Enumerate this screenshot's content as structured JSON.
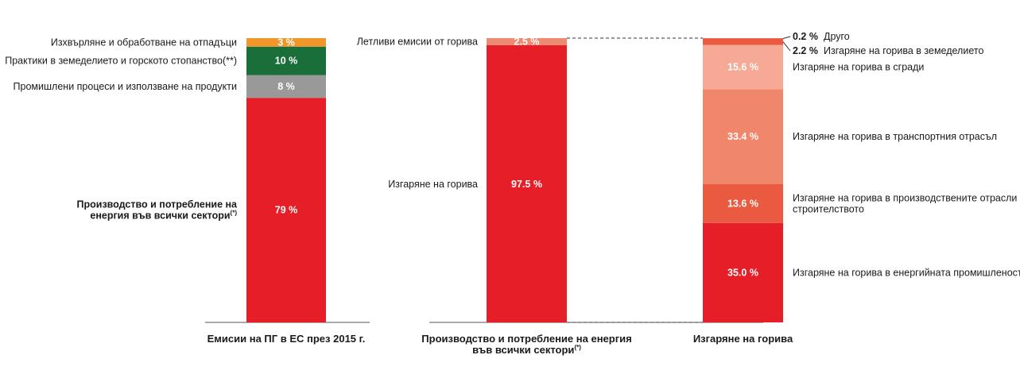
{
  "chart_data": {
    "type": "bar",
    "title": "",
    "stacked": true,
    "colors": {
      "waste": "#f0962a",
      "agriculture": "#1a6e3a",
      "industry": "#999999",
      "energy": "#e61e28",
      "fugitive": "#ef8a72",
      "fuel_buildings": "#f6a994",
      "fuel_transport": "#f0866a",
      "fuel_industry": "#ea5a40",
      "fuel_agri_other": "#ea5a40",
      "connector": "#333333",
      "axis": "#555555"
    },
    "bars": [
      {
        "category_lines": [
          "Емисии на ПГ в ЕС през 2015 г."
        ],
        "category_sup": "",
        "segments": [
          {
            "key": "energy",
            "value": 79,
            "value_label": "79 %",
            "label_lines": [
              "Производство и потребление на",
              "енергия във всички сектори"
            ],
            "label_sup": "(*)"
          },
          {
            "key": "industry",
            "value": 8,
            "value_label": "8 %",
            "label_lines": [
              "Промишлени процеси и използване на продукти"
            ]
          },
          {
            "key": "agriculture",
            "value": 10,
            "value_label": "10 %",
            "label_lines": [
              "Практики в земеделието и горското стопанство(**)"
            ]
          },
          {
            "key": "waste",
            "value": 3,
            "value_label": "3 %",
            "label_lines": [
              "Изхвърляне и обработване на отпадъци"
            ]
          }
        ]
      },
      {
        "category_lines": [
          "Производство и потребление на енергия",
          "във всички сектори"
        ],
        "category_sup": "(*)",
        "segments": [
          {
            "key": "energy",
            "value": 97.5,
            "value_label": "97.5 %",
            "label_lines": [
              "Изгаряне на горива"
            ]
          },
          {
            "key": "fugitive",
            "value": 2.5,
            "value_label": "2.5 %",
            "label_lines": [
              "Летливи емисии от горива"
            ]
          }
        ]
      },
      {
        "category_lines": [
          "Изгаряне на горива"
        ],
        "category_sup": "",
        "segments": [
          {
            "key": "energy",
            "value": 35.0,
            "value_label": "35.0 %",
            "label_lines": [
              "Изгаряне на горива в енергийната промишленост"
            ]
          },
          {
            "key": "fuel_industry",
            "value": 13.6,
            "value_label": "13.6 %",
            "label_lines": [
              "Изгаряне на горива в производствените отрасли и",
              "строителството"
            ]
          },
          {
            "key": "fuel_transport",
            "value": 33.4,
            "value_label": "33.4 %",
            "label_lines": [
              "Изгаряне на горива в транспортния отрасъл"
            ]
          },
          {
            "key": "fuel_buildings",
            "value": 15.6,
            "value_label": "15.6 %",
            "label_lines": [
              "Изгаряне на горива в сгради"
            ]
          },
          {
            "key": "fuel_agri_other",
            "value": 2.2,
            "value_label": "2.2 %",
            "label_lines": [
              "Изгаряне на горива в земеделието"
            ]
          },
          {
            "key": "fuel_agri_other",
            "value": 0.2,
            "value_label": "0.2 %",
            "label_lines": [
              "Друго"
            ]
          }
        ]
      }
    ]
  }
}
